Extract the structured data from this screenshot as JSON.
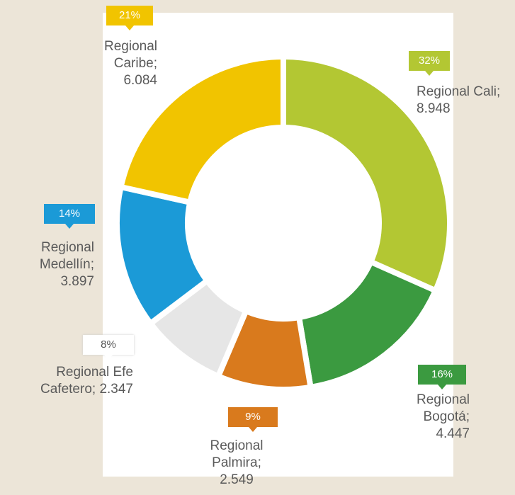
{
  "chart_data": {
    "type": "pie",
    "donut": true,
    "categories": [
      "Regional Cali",
      "Regional Bogotá",
      "Regional Palmira",
      "Regional Efe Cafetero",
      "Regional Medellín",
      "Regional Caribe"
    ],
    "values": [
      8948,
      4447,
      2549,
      2347,
      3897,
      6084
    ],
    "value_labels": [
      "8.948",
      "4.447",
      "2.549",
      "2.347",
      "3.897",
      "6.084"
    ],
    "separator": ";",
    "percent_labels": [
      "32%",
      "16%",
      "9%",
      "8%",
      "14%",
      "21%"
    ],
    "colors": [
      "#b3c733",
      "#3b9a40",
      "#d97a1d",
      "#e6e6e6",
      "#1b9ad7",
      "#f1c400"
    ]
  }
}
